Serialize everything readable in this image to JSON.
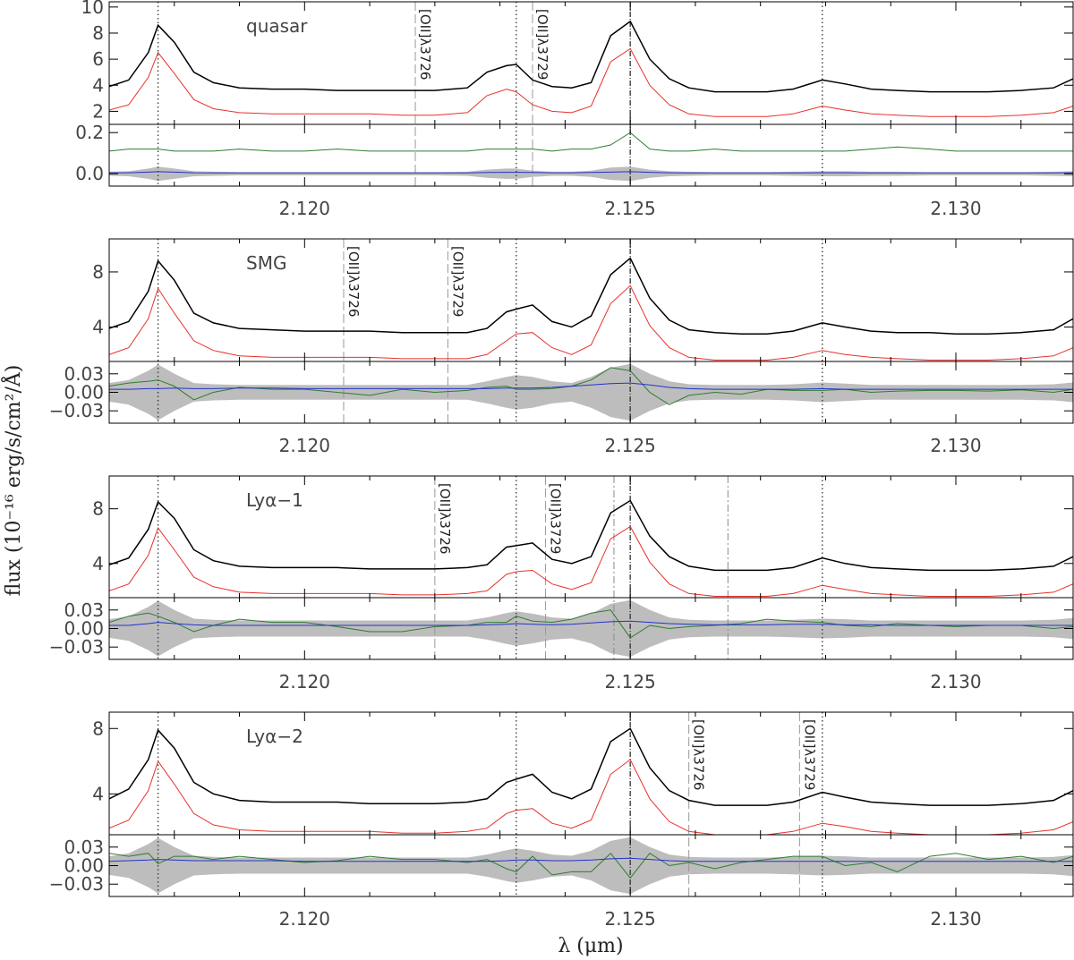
{
  "chart_data": {
    "type": "line",
    "xlabel": "λ (μm)",
    "ylabel": "flux (10⁻¹⁶ erg/s/cm²/Å)",
    "xlim": [
      2.117,
      2.1318
    ],
    "x_ticks": [
      "2.120",
      "2.125",
      "2.130"
    ],
    "x_tick_values": [
      2.12,
      2.125,
      2.13
    ],
    "colors": {
      "total": "#000000",
      "sky": "#e8302a",
      "residual": "#2e7d2e",
      "error": "#2233cc",
      "band": "#bdbdbd"
    },
    "sky_line_markers": [
      2.11775,
      2.12325,
      2.125,
      2.12795
    ],
    "x": [
      2.117,
      2.1173,
      2.1176,
      2.11775,
      2.118,
      2.1183,
      2.1186,
      2.119,
      2.1195,
      2.12,
      2.1205,
      2.121,
      2.1215,
      2.122,
      2.1225,
      2.1228,
      2.1231,
      2.12325,
      2.1235,
      2.1238,
      2.1241,
      2.1244,
      2.1247,
      2.125,
      2.1253,
      2.1256,
      2.1259,
      2.1263,
      2.1267,
      2.1271,
      2.1275,
      2.12795,
      2.1283,
      2.1287,
      2.1291,
      2.1296,
      2.13,
      2.1305,
      2.131,
      2.1315,
      2.1318
    ],
    "panels": [
      {
        "label": "quasar",
        "top_ylim": [
          1.0,
          10.4
        ],
        "top_ticks": [
          "2",
          "4",
          "6",
          "8",
          "10"
        ],
        "top_tick_values": [
          2,
          4,
          6,
          8,
          10
        ],
        "bottom_ylim": [
          -0.06,
          0.24
        ],
        "bottom_ticks": [
          "0.0",
          "0.2"
        ],
        "bottom_tick_values": [
          0.0,
          0.2
        ],
        "oii_lines": [
          {
            "x": 2.1217,
            "label": "[OII]λ3726"
          },
          {
            "x": 2.1235,
            "label": "[OII]λ3729"
          }
        ],
        "dashdot_lines": [],
        "series_total": [
          3.9,
          4.4,
          6.5,
          8.6,
          7.3,
          5.0,
          4.2,
          3.8,
          3.7,
          3.7,
          3.6,
          3.6,
          3.6,
          3.6,
          3.8,
          5.0,
          5.5,
          5.6,
          4.4,
          3.9,
          3.8,
          4.2,
          7.8,
          8.9,
          6.0,
          4.5,
          3.8,
          3.5,
          3.5,
          3.5,
          3.7,
          4.4,
          4.1,
          3.7,
          3.6,
          3.5,
          3.5,
          3.5,
          3.6,
          3.8,
          4.5
        ],
        "series_sky": [
          2.1,
          2.5,
          4.6,
          6.5,
          4.9,
          2.9,
          2.2,
          1.9,
          1.8,
          1.8,
          1.8,
          1.8,
          1.7,
          1.7,
          1.9,
          3.2,
          3.7,
          3.5,
          2.5,
          2.0,
          1.9,
          2.4,
          5.8,
          6.8,
          4.0,
          2.5,
          1.8,
          1.6,
          1.6,
          1.6,
          1.8,
          2.4,
          2.1,
          1.8,
          1.7,
          1.6,
          1.6,
          1.6,
          1.7,
          1.9,
          2.4
        ],
        "series_residual": [
          0.11,
          0.12,
          0.12,
          0.12,
          0.11,
          0.11,
          0.11,
          0.12,
          0.11,
          0.11,
          0.12,
          0.11,
          0.11,
          0.11,
          0.11,
          0.12,
          0.12,
          0.12,
          0.12,
          0.11,
          0.12,
          0.12,
          0.14,
          0.2,
          0.12,
          0.11,
          0.11,
          0.12,
          0.11,
          0.11,
          0.11,
          0.11,
          0.11,
          0.12,
          0.13,
          0.12,
          0.11,
          0.11,
          0.11,
          0.11,
          0.11
        ],
        "series_error": [
          0.005,
          0.005,
          0.008,
          0.01,
          0.008,
          0.005,
          0.004,
          0.004,
          0.004,
          0.004,
          0.004,
          0.004,
          0.004,
          0.004,
          0.004,
          0.006,
          0.007,
          0.007,
          0.006,
          0.005,
          0.005,
          0.006,
          0.008,
          0.01,
          0.007,
          0.005,
          0.004,
          0.004,
          0.004,
          0.004,
          0.004,
          0.005,
          0.005,
          0.004,
          0.004,
          0.004,
          0.004,
          0.004,
          0.004,
          0.004,
          0.005
        ],
        "series_band": [
          0.01,
          0.012,
          0.025,
          0.035,
          0.025,
          0.012,
          0.01,
          0.008,
          0.008,
          0.008,
          0.008,
          0.008,
          0.008,
          0.008,
          0.01,
          0.02,
          0.025,
          0.025,
          0.015,
          0.01,
          0.01,
          0.015,
          0.03,
          0.035,
          0.02,
          0.012,
          0.01,
          0.008,
          0.008,
          0.008,
          0.01,
          0.012,
          0.012,
          0.01,
          0.01,
          0.008,
          0.008,
          0.008,
          0.008,
          0.01,
          0.012
        ]
      },
      {
        "label": "SMG",
        "top_ylim": [
          1.5,
          10.4
        ],
        "top_ticks": [
          "4",
          "8"
        ],
        "top_tick_values": [
          4,
          8
        ],
        "bottom_ylim": [
          -0.05,
          0.05
        ],
        "bottom_ticks": [
          "0.03",
          "0.00",
          "−0.03"
        ],
        "bottom_tick_values": [
          0.03,
          0.0,
          -0.03
        ],
        "oii_lines": [
          {
            "x": 2.1206,
            "label": "[OII]λ3726"
          },
          {
            "x": 2.1222,
            "label": "[OII]λ3729"
          }
        ],
        "dashdot_lines": [],
        "series_total": [
          3.9,
          4.4,
          6.6,
          8.8,
          7.4,
          5.0,
          4.3,
          3.9,
          3.8,
          3.7,
          3.7,
          3.7,
          3.6,
          3.6,
          3.6,
          3.9,
          5.1,
          5.3,
          5.6,
          4.4,
          4.0,
          4.8,
          7.8,
          9.0,
          6.1,
          4.5,
          3.8,
          3.6,
          3.5,
          3.5,
          3.7,
          4.3,
          4.0,
          3.7,
          3.6,
          3.6,
          3.5,
          3.5,
          3.6,
          3.8,
          4.6
        ],
        "series_sky": [
          2.0,
          2.5,
          4.6,
          6.8,
          5.0,
          3.0,
          2.3,
          1.9,
          1.8,
          1.8,
          1.8,
          1.8,
          1.7,
          1.7,
          1.7,
          2.0,
          3.0,
          3.5,
          3.6,
          2.5,
          2.0,
          2.7,
          5.7,
          7.0,
          4.1,
          2.5,
          1.8,
          1.6,
          1.6,
          1.6,
          1.8,
          2.3,
          2.0,
          1.8,
          1.7,
          1.6,
          1.6,
          1.6,
          1.7,
          1.9,
          2.5
        ],
        "series_residual": [
          0.01,
          0.015,
          0.018,
          0.02,
          0.01,
          -0.012,
          0.0,
          0.008,
          0.005,
          0.005,
          0.0,
          -0.005,
          0.005,
          0.0,
          0.003,
          0.008,
          0.01,
          0.005,
          0.005,
          0.006,
          0.01,
          0.02,
          0.04,
          0.035,
          0.0,
          -0.02,
          -0.005,
          0.0,
          -0.003,
          0.005,
          0.003,
          0.003,
          0.005,
          0.0,
          0.002,
          0.003,
          0.003,
          0.002,
          0.004,
          0.0,
          0.005
        ],
        "series_error": [
          0.005,
          0.005,
          0.006,
          0.006,
          0.007,
          0.006,
          0.006,
          0.007,
          0.007,
          0.006,
          0.006,
          0.006,
          0.006,
          0.006,
          0.006,
          0.006,
          0.007,
          0.007,
          0.007,
          0.008,
          0.01,
          0.012,
          0.014,
          0.015,
          0.012,
          0.008,
          0.006,
          0.005,
          0.005,
          0.005,
          0.005,
          0.006,
          0.005,
          0.005,
          0.005,
          0.005,
          0.005,
          0.005,
          0.005,
          0.005,
          0.005
        ],
        "series_band": [
          0.015,
          0.02,
          0.035,
          0.045,
          0.03,
          0.015,
          0.013,
          0.012,
          0.012,
          0.012,
          0.012,
          0.012,
          0.012,
          0.012,
          0.012,
          0.018,
          0.025,
          0.028,
          0.025,
          0.018,
          0.015,
          0.025,
          0.04,
          0.046,
          0.03,
          0.018,
          0.013,
          0.012,
          0.012,
          0.012,
          0.013,
          0.016,
          0.014,
          0.012,
          0.012,
          0.012,
          0.012,
          0.012,
          0.012,
          0.013,
          0.016
        ]
      },
      {
        "label": "Lyα−1",
        "top_ylim": [
          1.5,
          10.4
        ],
        "top_ticks": [
          "4",
          "8"
        ],
        "top_tick_values": [
          4,
          8
        ],
        "bottom_ylim": [
          -0.05,
          0.05
        ],
        "bottom_ticks": [
          "0.03",
          "0.00",
          "−0.03"
        ],
        "bottom_tick_values": [
          0.03,
          0.0,
          -0.03
        ],
        "oii_lines": [
          {
            "x": 2.122,
            "label": "[OII]λ3726"
          },
          {
            "x": 2.1237,
            "label": "[OII]λ3729"
          }
        ],
        "dashdot_lines": [
          2.12475,
          2.1265
        ],
        "series_total": [
          3.9,
          4.4,
          6.5,
          8.5,
          7.3,
          5.0,
          4.2,
          3.8,
          3.7,
          3.7,
          3.7,
          3.6,
          3.6,
          3.6,
          3.7,
          3.9,
          5.2,
          5.3,
          5.5,
          4.3,
          4.0,
          4.5,
          7.7,
          8.6,
          6.0,
          4.5,
          3.8,
          3.5,
          3.5,
          3.5,
          3.7,
          4.4,
          4.0,
          3.7,
          3.6,
          3.5,
          3.5,
          3.5,
          3.6,
          3.8,
          4.5
        ],
        "series_sky": [
          2.0,
          2.5,
          4.6,
          6.6,
          5.0,
          3.0,
          2.3,
          1.9,
          1.8,
          1.8,
          1.8,
          1.8,
          1.7,
          1.7,
          1.8,
          2.0,
          3.2,
          3.4,
          3.5,
          2.5,
          2.1,
          2.6,
          5.8,
          6.7,
          4.1,
          2.5,
          1.8,
          1.6,
          1.6,
          1.6,
          1.8,
          2.4,
          2.1,
          1.8,
          1.7,
          1.6,
          1.6,
          1.6,
          1.7,
          1.9,
          2.5
        ],
        "series_residual": [
          0.01,
          0.02,
          0.025,
          0.02,
          0.01,
          -0.005,
          0.005,
          0.015,
          0.01,
          0.01,
          0.003,
          -0.005,
          -0.005,
          0.003,
          0.005,
          0.01,
          0.01,
          0.02,
          0.012,
          0.01,
          0.015,
          0.025,
          0.03,
          -0.015,
          0.005,
          0.0,
          0.003,
          0.005,
          0.008,
          0.015,
          0.012,
          0.01,
          0.005,
          0.003,
          0.008,
          0.005,
          0.003,
          0.005,
          0.005,
          0.0,
          0.003
        ],
        "series_error": [
          0.005,
          0.005,
          0.008,
          0.01,
          0.008,
          0.006,
          0.005,
          0.005,
          0.005,
          0.005,
          0.005,
          0.005,
          0.005,
          0.005,
          0.005,
          0.006,
          0.007,
          0.008,
          0.007,
          0.006,
          0.007,
          0.009,
          0.011,
          0.012,
          0.01,
          0.008,
          0.007,
          0.006,
          0.006,
          0.006,
          0.007,
          0.007,
          0.006,
          0.006,
          0.005,
          0.005,
          0.005,
          0.005,
          0.005,
          0.005,
          0.005
        ],
        "series_band": [
          0.015,
          0.02,
          0.035,
          0.045,
          0.03,
          0.016,
          0.014,
          0.013,
          0.013,
          0.013,
          0.013,
          0.013,
          0.013,
          0.013,
          0.013,
          0.018,
          0.025,
          0.028,
          0.024,
          0.018,
          0.016,
          0.024,
          0.04,
          0.046,
          0.03,
          0.018,
          0.014,
          0.013,
          0.013,
          0.013,
          0.014,
          0.016,
          0.015,
          0.013,
          0.013,
          0.013,
          0.013,
          0.013,
          0.013,
          0.014,
          0.017
        ]
      },
      {
        "label": "Lyα−2",
        "top_ylim": [
          1.5,
          9.0
        ],
        "top_ticks": [
          "4",
          "8"
        ],
        "top_tick_values": [
          4,
          8
        ],
        "bottom_ylim": [
          -0.05,
          0.05
        ],
        "bottom_ticks": [
          "0.03",
          "0.00",
          "−0.03"
        ],
        "bottom_tick_values": [
          0.03,
          0.0,
          -0.03
        ],
        "oii_lines": [
          {
            "x": 2.1259,
            "label": "[OII]λ3726"
          },
          {
            "x": 2.1276,
            "label": "[OII]λ3729"
          }
        ],
        "dashdot_lines": [],
        "series_total": [
          3.7,
          4.3,
          6.1,
          7.9,
          6.8,
          4.7,
          4.0,
          3.6,
          3.5,
          3.5,
          3.5,
          3.4,
          3.4,
          3.4,
          3.5,
          3.7,
          4.7,
          4.9,
          5.2,
          4.1,
          3.7,
          4.3,
          7.2,
          8.0,
          5.6,
          4.2,
          3.6,
          3.3,
          3.3,
          3.3,
          3.5,
          4.1,
          3.8,
          3.5,
          3.4,
          3.3,
          3.3,
          3.3,
          3.4,
          3.6,
          4.2
        ],
        "series_sky": [
          1.9,
          2.4,
          4.2,
          6.0,
          4.6,
          2.8,
          2.1,
          1.8,
          1.7,
          1.7,
          1.7,
          1.7,
          1.6,
          1.6,
          1.7,
          1.9,
          2.8,
          3.0,
          3.1,
          2.2,
          1.9,
          2.4,
          5.2,
          6.1,
          3.7,
          2.3,
          1.7,
          1.5,
          1.5,
          1.5,
          1.7,
          2.2,
          2.0,
          1.7,
          1.6,
          1.5,
          1.5,
          1.5,
          1.6,
          1.8,
          2.3
        ],
        "series_residual": [
          0.02,
          0.015,
          0.02,
          0.003,
          0.015,
          0.015,
          0.01,
          0.015,
          0.01,
          0.005,
          0.008,
          0.015,
          0.01,
          0.01,
          0.005,
          0.01,
          -0.005,
          -0.01,
          0.015,
          -0.015,
          -0.01,
          -0.01,
          0.02,
          -0.02,
          0.02,
          0.0,
          0.005,
          -0.005,
          0.005,
          0.01,
          0.015,
          0.015,
          0.0,
          0.005,
          -0.01,
          0.015,
          0.02,
          0.01,
          0.015,
          0.005,
          0.015
        ],
        "series_error": [
          0.007,
          0.008,
          0.009,
          0.01,
          0.009,
          0.008,
          0.008,
          0.008,
          0.008,
          0.007,
          0.007,
          0.007,
          0.007,
          0.007,
          0.007,
          0.007,
          0.008,
          0.009,
          0.009,
          0.008,
          0.008,
          0.009,
          0.011,
          0.012,
          0.01,
          0.008,
          0.007,
          0.007,
          0.007,
          0.007,
          0.007,
          0.007,
          0.007,
          0.007,
          0.007,
          0.007,
          0.007,
          0.007,
          0.007,
          0.007,
          0.007
        ],
        "series_band": [
          0.015,
          0.02,
          0.035,
          0.045,
          0.03,
          0.016,
          0.014,
          0.013,
          0.013,
          0.013,
          0.013,
          0.013,
          0.013,
          0.013,
          0.013,
          0.018,
          0.025,
          0.028,
          0.024,
          0.018,
          0.016,
          0.024,
          0.04,
          0.046,
          0.03,
          0.018,
          0.014,
          0.013,
          0.013,
          0.013,
          0.014,
          0.016,
          0.015,
          0.013,
          0.013,
          0.013,
          0.013,
          0.013,
          0.013,
          0.014,
          0.017
        ]
      }
    ]
  }
}
